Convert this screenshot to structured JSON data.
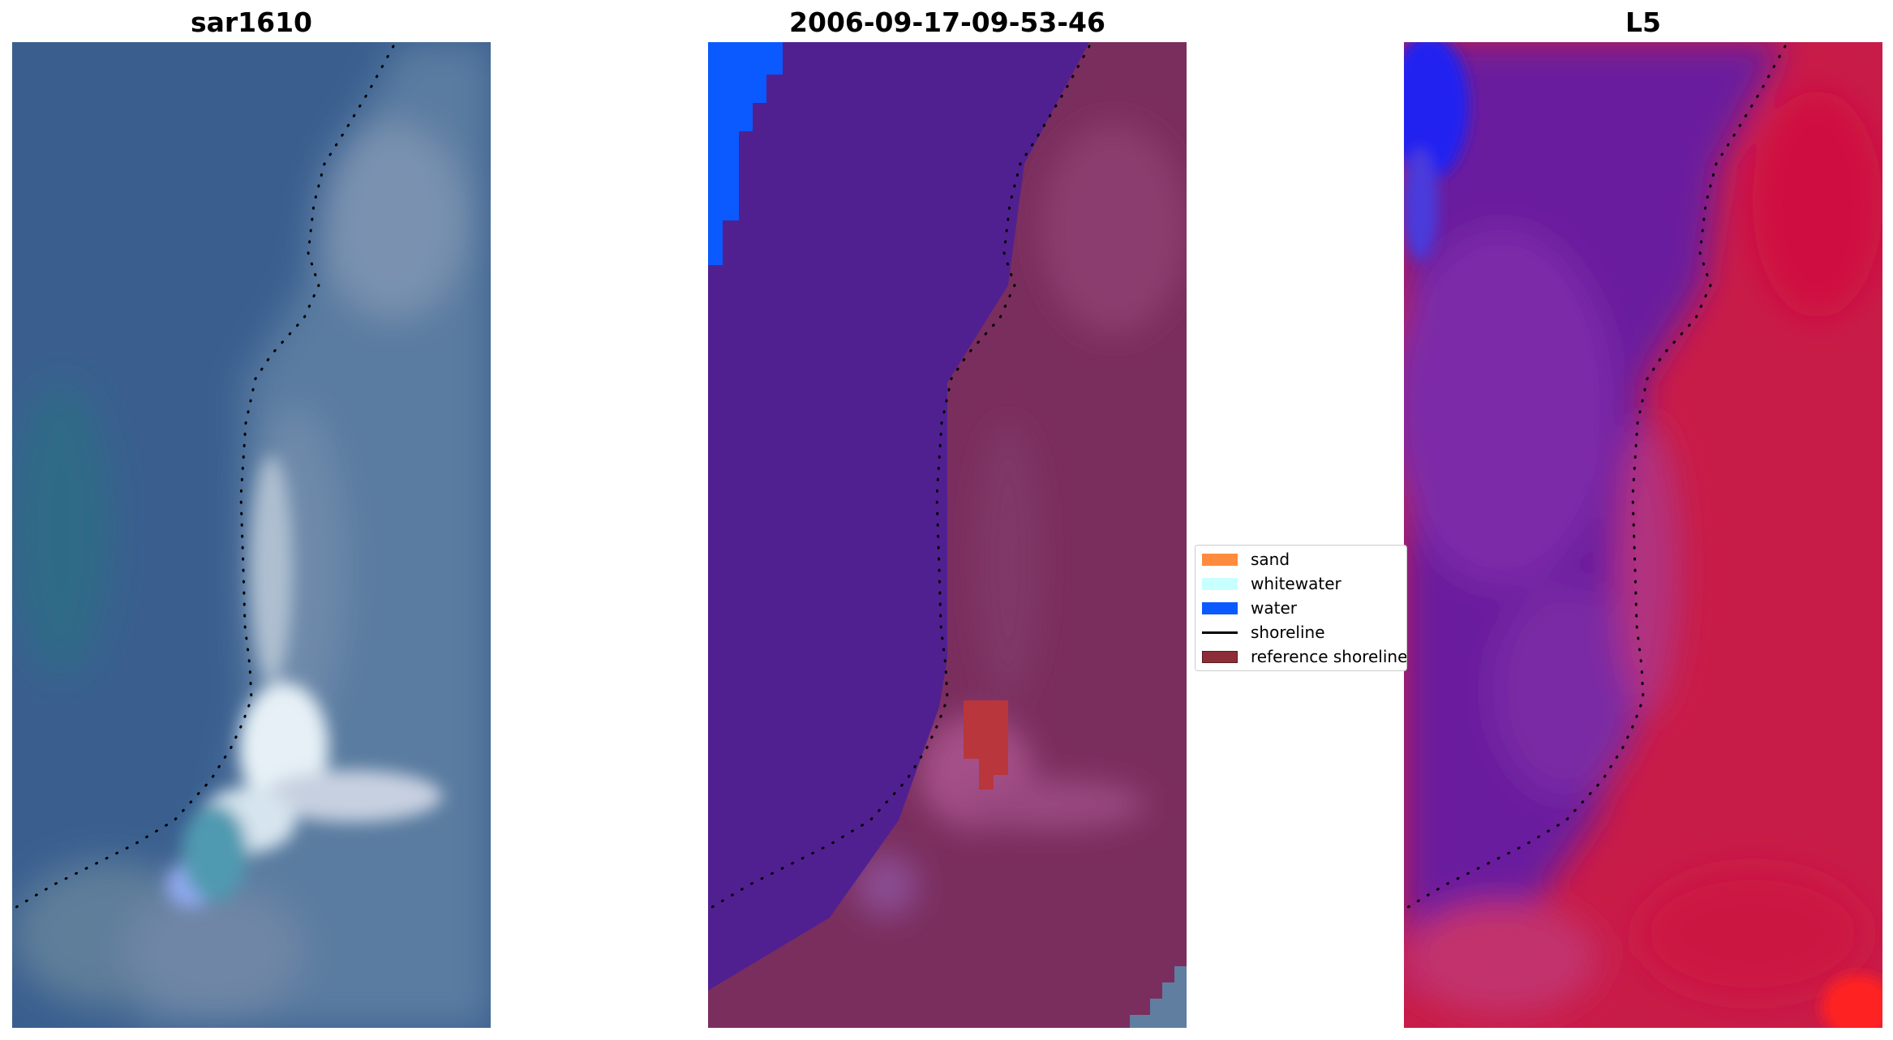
{
  "panels": {
    "left": {
      "title": "sar1610"
    },
    "middle": {
      "title": "2006-09-17-09-53-46"
    },
    "right": {
      "title": "L5"
    }
  },
  "legend": {
    "items": [
      {
        "label": "sand",
        "color": "#ff8c3c"
      },
      {
        "label": "whitewater",
        "color": "#c8ffff"
      },
      {
        "label": "water",
        "color": "#0a5aff"
      },
      {
        "label": "shoreline",
        "color": "#000000"
      },
      {
        "label": "reference shoreline",
        "color": "#8c2d37"
      }
    ]
  },
  "colors": {
    "rgb_water": "#3a5f8f",
    "rgb_land": "#5f7ea0",
    "rgb_whitewater": "#e6f0f6",
    "class_water_tint": "#512090",
    "class_land": "#7a2e5e",
    "class_water": "#0a5aff",
    "class_reference": "#b8363c",
    "mndwi_water": "#6a1a9e",
    "mndwi_land": "#c81c48",
    "mndwi_blue": "#2020f0",
    "mndwi_red": "#ff2020"
  }
}
